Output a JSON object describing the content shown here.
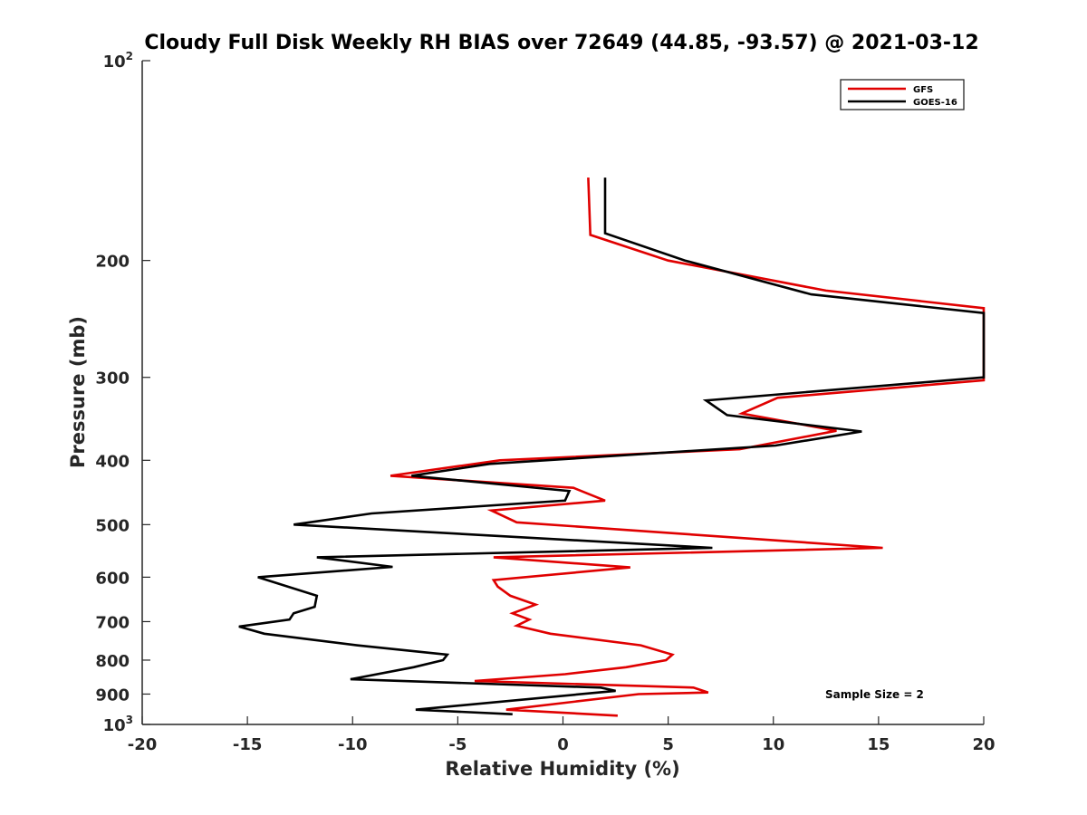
{
  "chart_data": {
    "type": "line",
    "title": "Cloudy Full Disk Weekly RH BIAS over 72649 (44.85, -93.57) @ 2021-03-12",
    "xlabel": "Relative Humidity (%)",
    "ylabel": "Pressure (mb)",
    "xlim": [
      -20,
      20
    ],
    "ylim": [
      100,
      1000
    ],
    "y_scale": "log",
    "y_reversed": true,
    "grid": false,
    "legend_position": "top-right",
    "x_ticks": [
      "-20",
      "-15",
      "-10",
      "-5",
      "0",
      "5",
      "10",
      "15",
      "20"
    ],
    "y_ticks": [
      {
        "value": 100,
        "base": "10",
        "exp": "2"
      },
      {
        "value": 200,
        "label": "200"
      },
      {
        "value": 300,
        "label": "300"
      },
      {
        "value": 400,
        "label": "400"
      },
      {
        "value": 500,
        "label": "500"
      },
      {
        "value": 600,
        "label": "600"
      },
      {
        "value": 700,
        "label": "700"
      },
      {
        "value": 800,
        "label": "800"
      },
      {
        "value": 900,
        "label": "900"
      },
      {
        "value": 1000,
        "base": "10",
        "exp": "3"
      }
    ],
    "annotation": "Sample Size = 2",
    "series": [
      {
        "name": "GFS",
        "color": "#e00000",
        "points": [
          [
            1.2,
            150
          ],
          [
            1.3,
            183
          ],
          [
            5.0,
            200
          ],
          [
            12.5,
            222
          ],
          [
            20.0,
            236
          ],
          [
            20.0,
            303
          ],
          [
            10.2,
            322
          ],
          [
            8.5,
            340
          ],
          [
            13.0,
            361
          ],
          [
            8.4,
            385
          ],
          [
            -3.0,
            400
          ],
          [
            -8.2,
            422
          ],
          [
            0.5,
            440
          ],
          [
            2.0,
            460
          ],
          [
            -3.4,
            476
          ],
          [
            -2.2,
            496
          ],
          [
            15.2,
            542
          ],
          [
            -3.3,
            560
          ],
          [
            3.2,
            580
          ],
          [
            -3.3,
            606
          ],
          [
            -3.1,
            620
          ],
          [
            -2.5,
            640
          ],
          [
            -1.3,
            660
          ],
          [
            -2.4,
            680
          ],
          [
            -1.6,
            695
          ],
          [
            -2.2,
            710
          ],
          [
            -0.6,
            730
          ],
          [
            3.7,
            760
          ],
          [
            5.2,
            785
          ],
          [
            4.9,
            800
          ],
          [
            3.0,
            820
          ],
          [
            0.1,
            840
          ],
          [
            -4.2,
            860
          ],
          [
            6.2,
            880
          ],
          [
            6.9,
            895
          ],
          [
            3.6,
            900
          ],
          [
            -2.7,
            950
          ],
          [
            2.6,
            970
          ]
        ]
      },
      {
        "name": "GOES-16",
        "color": "#000000",
        "points": [
          [
            2.0,
            150
          ],
          [
            2.0,
            182
          ],
          [
            5.8,
            200
          ],
          [
            11.8,
            225
          ],
          [
            20.0,
            240
          ],
          [
            20.0,
            300
          ],
          [
            6.8,
            325
          ],
          [
            7.8,
            342
          ],
          [
            14.2,
            362
          ],
          [
            10.1,
            380
          ],
          [
            -3.5,
            405
          ],
          [
            -7.2,
            422
          ],
          [
            0.3,
            445
          ],
          [
            0.1,
            460
          ],
          [
            -9.1,
            481
          ],
          [
            -12.8,
            500
          ],
          [
            7.1,
            542
          ],
          [
            -11.7,
            560
          ],
          [
            -8.1,
            579
          ],
          [
            -14.5,
            600
          ],
          [
            -11.7,
            640
          ],
          [
            -11.8,
            665
          ],
          [
            -12.8,
            680
          ],
          [
            -13.0,
            695
          ],
          [
            -15.4,
            712
          ],
          [
            -14.2,
            730
          ],
          [
            -9.8,
            760
          ],
          [
            -5.5,
            785
          ],
          [
            -5.7,
            800
          ],
          [
            -7.1,
            820
          ],
          [
            -10.1,
            855
          ],
          [
            1.8,
            880
          ],
          [
            2.5,
            890
          ],
          [
            -7.0,
            950
          ],
          [
            -2.4,
            965
          ]
        ]
      }
    ]
  }
}
